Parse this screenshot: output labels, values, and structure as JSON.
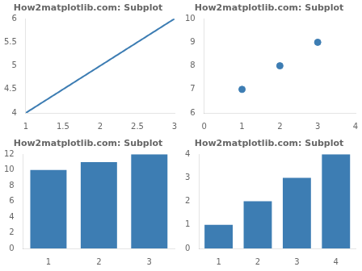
{
  "chart_data": [
    {
      "type": "line",
      "title": "How2matplotlib.com: Subplot",
      "color": "#3d7db3",
      "x": [
        1,
        1.0202,
        1.0404,
        1.0606,
        1.0808,
        1.101,
        1.1212,
        1.1414,
        1.1616,
        1.1818,
        1.202,
        1.2222,
        1.2424,
        1.2626,
        1.2828,
        1.303,
        1.3232,
        1.3434,
        1.3636,
        1.3838,
        1.404,
        1.4242,
        1.4444,
        1.4646,
        1.4848,
        1.5051,
        1.5253,
        1.5455,
        1.5657,
        1.5859,
        1.6061,
        1.6263,
        1.6465,
        1.6667,
        1.6869,
        1.7071,
        1.7273,
        1.7475,
        1.7677,
        1.7879,
        1.8081,
        1.8283,
        1.8485,
        1.8687,
        1.8889,
        1.9091,
        1.9293,
        1.9495,
        1.9697,
        1.9899,
        2.0101,
        2.0303,
        2.0505,
        2.0707,
        2.0909,
        2.1111,
        2.1313,
        2.1515,
        2.1717,
        2.1919,
        2.2121,
        2.2323,
        2.2525,
        2.2727,
        2.2929,
        2.3131,
        2.3333,
        2.3535,
        2.3737,
        2.3939,
        2.4141,
        2.4343,
        2.4545,
        2.4747,
        2.4949,
        2.5152,
        2.5354,
        2.5556,
        2.5758,
        2.596,
        2.6162,
        2.6364,
        2.6566,
        2.6768,
        2.697,
        2.7172,
        2.7374,
        2.7576,
        2.7778,
        2.798,
        2.8182,
        2.8384,
        2.8586,
        2.8788,
        2.899,
        2.9192,
        2.9394,
        2.9596,
        2.9798,
        3
      ],
      "values": [
        4,
        4.0202,
        4.0404,
        4.0606,
        4.0808,
        4.101,
        4.1212,
        4.1414,
        4.1616,
        4.1818,
        4.202,
        4.2222,
        4.2424,
        4.2626,
        4.2828,
        4.303,
        4.3232,
        4.3434,
        4.3636,
        4.3838,
        4.404,
        4.4242,
        4.4444,
        4.4646,
        4.4848,
        4.5051,
        4.5253,
        4.5455,
        4.5657,
        4.5859,
        4.6061,
        4.6263,
        4.6465,
        4.6667,
        4.6869,
        4.7071,
        4.7273,
        4.7475,
        4.7677,
        4.7879,
        4.8081,
        4.8283,
        4.8485,
        4.8687,
        4.8889,
        4.9091,
        4.9293,
        4.9495,
        4.9697,
        4.9899,
        5.0101,
        5.0303,
        5.0505,
        5.0707,
        5.0909,
        5.1111,
        5.1313,
        5.1515,
        5.1717,
        5.1919,
        5.2121,
        5.2323,
        5.2525,
        5.2727,
        5.2929,
        5.3131,
        5.3333,
        5.3535,
        5.3737,
        5.3939,
        5.4141,
        5.4343,
        5.4545,
        5.4747,
        5.4949,
        5.5152,
        5.5354,
        5.5556,
        5.5758,
        5.596,
        5.6162,
        5.6364,
        5.6566,
        5.6768,
        5.697,
        5.7172,
        5.7374,
        5.7576,
        5.7778,
        5.798,
        5.8182,
        5.8384,
        5.8586,
        5.8788,
        5.899,
        5.9192,
        5.9394,
        5.9596,
        5.9798,
        6
      ],
      "xlim": [
        1,
        3
      ],
      "xticks": [
        1,
        1.5,
        2,
        2.5,
        3
      ],
      "ylim": [
        4,
        6
      ],
      "yticks": [
        4,
        4.5,
        5,
        5.5,
        6
      ],
      "grid": false
    },
    {
      "type": "scatter",
      "title": "How2matplotlib.com: Subplot",
      "color": "#3d7db3",
      "x": [
        1,
        2,
        3
      ],
      "values": [
        7,
        8,
        9
      ],
      "xlim": [
        0,
        4
      ],
      "xticks": [
        0,
        1,
        2,
        3,
        4
      ],
      "ylim": [
        6,
        10
      ],
      "yticks": [
        6,
        7,
        8,
        9,
        10
      ],
      "grid": false
    },
    {
      "type": "bar",
      "title": "How2matplotlib.com: Subplot",
      "color": "#3d7db3",
      "x": [
        1,
        2,
        3
      ],
      "values": [
        10,
        11,
        12
      ],
      "ylim": [
        0,
        12
      ],
      "yticks": [
        0,
        2,
        4,
        6,
        8,
        10,
        12
      ],
      "grid": false
    },
    {
      "type": "bar",
      "title": "How2matplotlib.com: Subplot",
      "color": "#3d7db3",
      "x": [
        1,
        2,
        3,
        4
      ],
      "values": [
        1,
        2,
        3,
        4
      ],
      "ylim": [
        0,
        4
      ],
      "yticks": [
        0,
        1,
        2,
        3,
        4
      ],
      "grid": false
    }
  ]
}
